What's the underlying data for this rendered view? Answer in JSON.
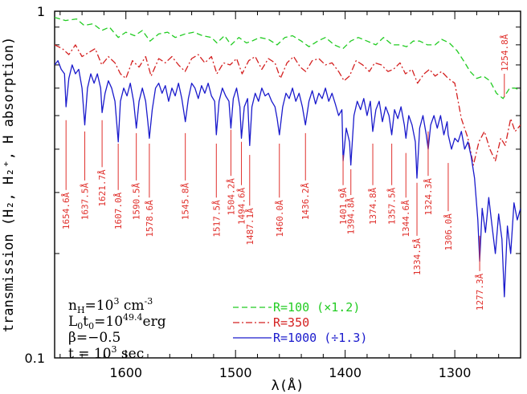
{
  "chart_data": {
    "type": "line",
    "xlabel": "λ(Å)",
    "ylabel": "transmission (H₂, H₂⁺, H absorption)",
    "xlim": [
      1665,
      1240
    ],
    "ylim": [
      0.1,
      1
    ],
    "y_scale": "log",
    "x_ticks": [
      1600,
      1500,
      1400,
      1300
    ],
    "y_ticks": [
      {
        "value": 1,
        "label": "1"
      },
      {
        "value": 0.1,
        "label": "0.1"
      }
    ],
    "series": [
      {
        "name": "R=100 (×1.2)",
        "color": "#22cc22",
        "style": "dashed",
        "x": [
          1665,
          1655,
          1645,
          1638,
          1630,
          1622,
          1615,
          1607,
          1600,
          1592,
          1585,
          1578,
          1570,
          1562,
          1555,
          1546,
          1538,
          1530,
          1522,
          1517,
          1510,
          1504,
          1497,
          1490,
          1485,
          1478,
          1470,
          1462,
          1455,
          1448,
          1440,
          1433,
          1425,
          1418,
          1410,
          1402,
          1395,
          1388,
          1380,
          1372,
          1365,
          1357,
          1350,
          1344,
          1338,
          1332,
          1325,
          1318,
          1312,
          1305,
          1298,
          1292,
          1286,
          1280,
          1274,
          1268,
          1262,
          1256,
          1250,
          1245,
          1240
        ],
        "y": [
          0.96,
          0.94,
          0.95,
          0.91,
          0.92,
          0.88,
          0.9,
          0.84,
          0.87,
          0.85,
          0.88,
          0.82,
          0.86,
          0.87,
          0.84,
          0.86,
          0.87,
          0.85,
          0.84,
          0.81,
          0.85,
          0.8,
          0.84,
          0.81,
          0.82,
          0.84,
          0.83,
          0.8,
          0.84,
          0.85,
          0.82,
          0.79,
          0.82,
          0.84,
          0.8,
          0.78,
          0.82,
          0.84,
          0.82,
          0.8,
          0.84,
          0.8,
          0.8,
          0.79,
          0.82,
          0.82,
          0.8,
          0.8,
          0.83,
          0.81,
          0.77,
          0.72,
          0.67,
          0.64,
          0.65,
          0.63,
          0.58,
          0.56,
          0.6,
          0.6,
          0.59
        ]
      },
      {
        "name": "R=350",
        "color": "#d42020",
        "style": "dashdot",
        "x": [
          1665,
          1658,
          1652,
          1646,
          1640,
          1634,
          1628,
          1622,
          1616,
          1610,
          1605,
          1600,
          1594,
          1588,
          1582,
          1577,
          1570,
          1564,
          1558,
          1552,
          1546,
          1540,
          1534,
          1528,
          1522,
          1517,
          1511,
          1505,
          1499,
          1494,
          1488,
          1482,
          1476,
          1470,
          1464,
          1459,
          1453,
          1447,
          1441,
          1436,
          1430,
          1424,
          1418,
          1412,
          1406,
          1401,
          1396,
          1390,
          1384,
          1378,
          1373,
          1367,
          1361,
          1356,
          1350,
          1345,
          1339,
          1334,
          1328,
          1323,
          1318,
          1312,
          1306,
          1300,
          1294,
          1288,
          1283,
          1278,
          1273,
          1268,
          1263,
          1258,
          1254,
          1249,
          1245,
          1240
        ],
        "y": [
          0.8,
          0.78,
          0.75,
          0.8,
          0.74,
          0.76,
          0.78,
          0.7,
          0.74,
          0.71,
          0.66,
          0.64,
          0.72,
          0.69,
          0.74,
          0.65,
          0.73,
          0.71,
          0.74,
          0.7,
          0.67,
          0.73,
          0.75,
          0.71,
          0.74,
          0.66,
          0.71,
          0.7,
          0.73,
          0.66,
          0.72,
          0.74,
          0.68,
          0.73,
          0.71,
          0.64,
          0.71,
          0.74,
          0.69,
          0.67,
          0.72,
          0.73,
          0.7,
          0.71,
          0.67,
          0.63,
          0.65,
          0.72,
          0.7,
          0.67,
          0.71,
          0.7,
          0.67,
          0.68,
          0.71,
          0.66,
          0.68,
          0.62,
          0.66,
          0.68,
          0.65,
          0.67,
          0.64,
          0.62,
          0.49,
          0.43,
          0.36,
          0.42,
          0.45,
          0.4,
          0.37,
          0.43,
          0.41,
          0.49,
          0.45,
          0.47
        ]
      },
      {
        "name": "R=1000 (÷1.3)",
        "color": "#1a1acc",
        "style": "solid",
        "x": [
          1665,
          1662,
          1659,
          1656,
          1654.6,
          1652,
          1649,
          1646,
          1643,
          1640,
          1637.5,
          1635,
          1632,
          1629,
          1626,
          1623,
          1621.7,
          1619,
          1616,
          1613,
          1610,
          1607,
          1605,
          1602,
          1599,
          1596,
          1593,
          1590.5,
          1588,
          1585,
          1582,
          1580,
          1578.6,
          1576,
          1573,
          1570,
          1567,
          1564,
          1561,
          1558,
          1555,
          1552,
          1549,
          1545.8,
          1543,
          1540,
          1537,
          1534,
          1531,
          1528,
          1525,
          1522,
          1519,
          1517.5,
          1515,
          1512,
          1509,
          1506,
          1504.2,
          1502,
          1499,
          1496,
          1494.6,
          1492,
          1489,
          1487.1,
          1485,
          1482,
          1479,
          1476,
          1473,
          1470,
          1467,
          1464,
          1462,
          1460,
          1457,
          1454,
          1451,
          1448,
          1445,
          1442,
          1439,
          1436.2,
          1433,
          1430,
          1427,
          1424,
          1421,
          1418,
          1415,
          1412,
          1409,
          1406,
          1403,
          1401.9,
          1399,
          1396,
          1394.8,
          1392,
          1389,
          1386,
          1383,
          1380,
          1377,
          1374.8,
          1372,
          1369,
          1366,
          1363,
          1360,
          1357.5,
          1355,
          1352,
          1349,
          1346,
          1344.6,
          1342,
          1339,
          1336,
          1334.5,
          1332,
          1329,
          1326,
          1324.3,
          1322,
          1319,
          1316,
          1313,
          1310,
          1307,
          1306,
          1303,
          1300,
          1297,
          1294,
          1291,
          1288,
          1285,
          1282,
          1279,
          1277.3,
          1275,
          1272,
          1269,
          1266,
          1263,
          1260,
          1257,
          1254.8,
          1252,
          1249,
          1246,
          1243,
          1240
        ],
        "y": [
          0.7,
          0.72,
          0.68,
          0.66,
          0.53,
          0.64,
          0.7,
          0.66,
          0.68,
          0.6,
          0.47,
          0.6,
          0.66,
          0.62,
          0.66,
          0.6,
          0.51,
          0.58,
          0.63,
          0.6,
          0.55,
          0.42,
          0.55,
          0.6,
          0.57,
          0.62,
          0.55,
          0.46,
          0.55,
          0.6,
          0.55,
          0.48,
          0.43,
          0.52,
          0.6,
          0.62,
          0.58,
          0.61,
          0.55,
          0.6,
          0.57,
          0.62,
          0.56,
          0.48,
          0.56,
          0.62,
          0.6,
          0.56,
          0.61,
          0.58,
          0.62,
          0.57,
          0.55,
          0.44,
          0.55,
          0.6,
          0.57,
          0.55,
          0.46,
          0.56,
          0.6,
          0.53,
          0.43,
          0.53,
          0.56,
          0.41,
          0.53,
          0.58,
          0.55,
          0.6,
          0.57,
          0.58,
          0.55,
          0.53,
          0.49,
          0.44,
          0.53,
          0.58,
          0.56,
          0.6,
          0.55,
          0.58,
          0.53,
          0.47,
          0.55,
          0.59,
          0.54,
          0.58,
          0.56,
          0.6,
          0.55,
          0.58,
          0.54,
          0.5,
          0.52,
          0.37,
          0.46,
          0.42,
          0.36,
          0.5,
          0.55,
          0.52,
          0.56,
          0.5,
          0.55,
          0.45,
          0.52,
          0.55,
          0.48,
          0.53,
          0.5,
          0.44,
          0.52,
          0.49,
          0.53,
          0.47,
          0.43,
          0.5,
          0.47,
          0.42,
          0.33,
          0.46,
          0.5,
          0.44,
          0.4,
          0.47,
          0.5,
          0.46,
          0.5,
          0.44,
          0.48,
          0.44,
          0.4,
          0.43,
          0.42,
          0.45,
          0.4,
          0.42,
          0.38,
          0.33,
          0.25,
          0.19,
          0.27,
          0.23,
          0.29,
          0.24,
          0.2,
          0.26,
          0.22,
          0.15,
          0.24,
          0.2,
          0.28,
          0.25,
          0.27
        ]
      }
    ],
    "line_markers": [
      {
        "label": "1654.6Å",
        "x": 1654.6,
        "y_top": 0.485,
        "y_bottom": 0.305
      },
      {
        "label": "1637.5Å",
        "x": 1637.5,
        "y_top": 0.45,
        "y_bottom": 0.325
      },
      {
        "label": "1621.7Å",
        "x": 1621.7,
        "y_top": 0.485,
        "y_bottom": 0.355
      },
      {
        "label": "1607.0Å",
        "x": 1607.0,
        "y_top": 0.415,
        "y_bottom": 0.305
      },
      {
        "label": "1590.5Å",
        "x": 1590.5,
        "y_top": 0.445,
        "y_bottom": 0.325
      },
      {
        "label": "1578.6Å",
        "x": 1578.6,
        "y_top": 0.415,
        "y_bottom": 0.29
      },
      {
        "label": "1545.8Å",
        "x": 1545.8,
        "y_top": 0.445,
        "y_bottom": 0.325
      },
      {
        "label": "1517.5Å",
        "x": 1517.5,
        "y_top": 0.415,
        "y_bottom": 0.29
      },
      {
        "label": "1504.2Å",
        "x": 1504.2,
        "y_top": 0.455,
        "y_bottom": 0.335
      },
      {
        "label": "1494.6Å",
        "x": 1494.6,
        "y_top": 0.42,
        "y_bottom": 0.315
      },
      {
        "label": "1487.1Å",
        "x": 1487.1,
        "y_top": 0.385,
        "y_bottom": 0.275
      },
      {
        "label": "1460.0Å",
        "x": 1460.0,
        "y_top": 0.415,
        "y_bottom": 0.29
      },
      {
        "label": "1436.2Å",
        "x": 1436.2,
        "y_top": 0.445,
        "y_bottom": 0.325
      },
      {
        "label": "1401.9Å",
        "x": 1401.9,
        "y_top": 0.385,
        "y_bottom": 0.315
      },
      {
        "label": "1394.8Å",
        "x": 1394.8,
        "y_top": 0.35,
        "y_bottom": 0.295
      },
      {
        "label": "1374.8Å",
        "x": 1374.8,
        "y_top": 0.415,
        "y_bottom": 0.315
      },
      {
        "label": "1357.5Å",
        "x": 1357.5,
        "y_top": 0.415,
        "y_bottom": 0.315
      },
      {
        "label": "1344.6Å",
        "x": 1344.6,
        "y_top": 0.39,
        "y_bottom": 0.29
      },
      {
        "label": "1334.5Å",
        "x": 1334.5,
        "y_top": 0.32,
        "y_bottom": 0.225
      },
      {
        "label": "1324.3Å",
        "x": 1324.3,
        "y_top": 0.45,
        "y_bottom": 0.335
      },
      {
        "label": "1306.0Å",
        "x": 1306.0,
        "y_top": 0.365,
        "y_bottom": 0.265
      },
      {
        "label": "1277.3Å",
        "x": 1277.3,
        "y_top": 0.225,
        "y_bottom": 0.178
      },
      {
        "label": "1254.8Å",
        "x": 1254.8,
        "y_top": 0.565,
        "y_bottom": 0.66
      }
    ],
    "annotations": {
      "params": [
        {
          "base": "n",
          "sub": "H",
          "rest": "=10",
          "sup": "3",
          "tail": " cm",
          "sup2": "-3"
        },
        {
          "base": "L",
          "sub": "0",
          "rest": "t",
          "sub2": "0",
          "rest2": "=10",
          "sup": "49.4",
          "tail": "erg"
        },
        {
          "text": "β=−0.5"
        },
        {
          "text": "t = 10",
          "sup": "3",
          "tail": " sec"
        }
      ]
    },
    "legend": {
      "placement": "bottom-center",
      "entries": [
        "R=100  (×1.2)",
        "R=350",
        "R=1000  (÷1.3)"
      ]
    }
  }
}
